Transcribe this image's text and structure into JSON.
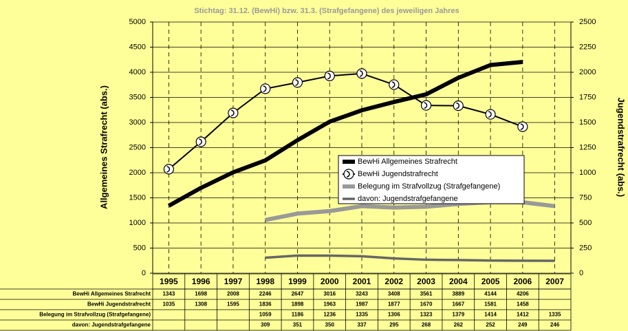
{
  "chart_data": {
    "type": "line",
    "title": "Stichtag: 31.12. (BewHi) bzw. 31.3. (Strafgefangene) des jeweiligen Jahres",
    "ylabel": "Allgemeines Strafrecht (abs.)",
    "y2label": "Jugendstrafrecht (abs.)",
    "categories": [
      "1995",
      "1996",
      "1997",
      "1998",
      "1999",
      "2000",
      "2001",
      "2002",
      "2003",
      "2004",
      "2005",
      "2006",
      "2007"
    ],
    "ylim": [
      0,
      5000
    ],
    "yticks": [
      0,
      500,
      1000,
      1500,
      2000,
      2500,
      3000,
      3500,
      4000,
      4500,
      5000
    ],
    "y2lim": [
      0,
      2500
    ],
    "y2ticks": [
      0,
      250,
      500,
      750,
      1000,
      1250,
      1500,
      1750,
      2000,
      2250,
      2500
    ],
    "grid": true,
    "series": [
      {
        "name": "BewHi Allgemeines Strafrecht",
        "color": "#000000",
        "values": [
          1343,
          1698,
          2008,
          2246,
          2647,
          3016,
          3243,
          3408,
          3561,
          3889,
          4144,
          4206,
          null
        ]
      },
      {
        "name": "BewHi Jugendstrafrecht",
        "color": "#000000",
        "axis": "y2",
        "values": [
          1035,
          1308,
          1595,
          1836,
          1898,
          1963,
          1987,
          1877,
          1670,
          1667,
          1581,
          1458,
          null
        ]
      },
      {
        "name": "Belegung im Strafvollzug (Strafgefangene)",
        "color": "#999999",
        "values": [
          null,
          null,
          null,
          1059,
          1186,
          1236,
          1335,
          1306,
          1323,
          1379,
          1414,
          1412,
          1335
        ]
      },
      {
        "name": "davon: Jugendstrafgefangene",
        "color": "#666666",
        "values": [
          null,
          null,
          null,
          309,
          351,
          350,
          337,
          295,
          268,
          262,
          252,
          249,
          246
        ]
      }
    ]
  }
}
